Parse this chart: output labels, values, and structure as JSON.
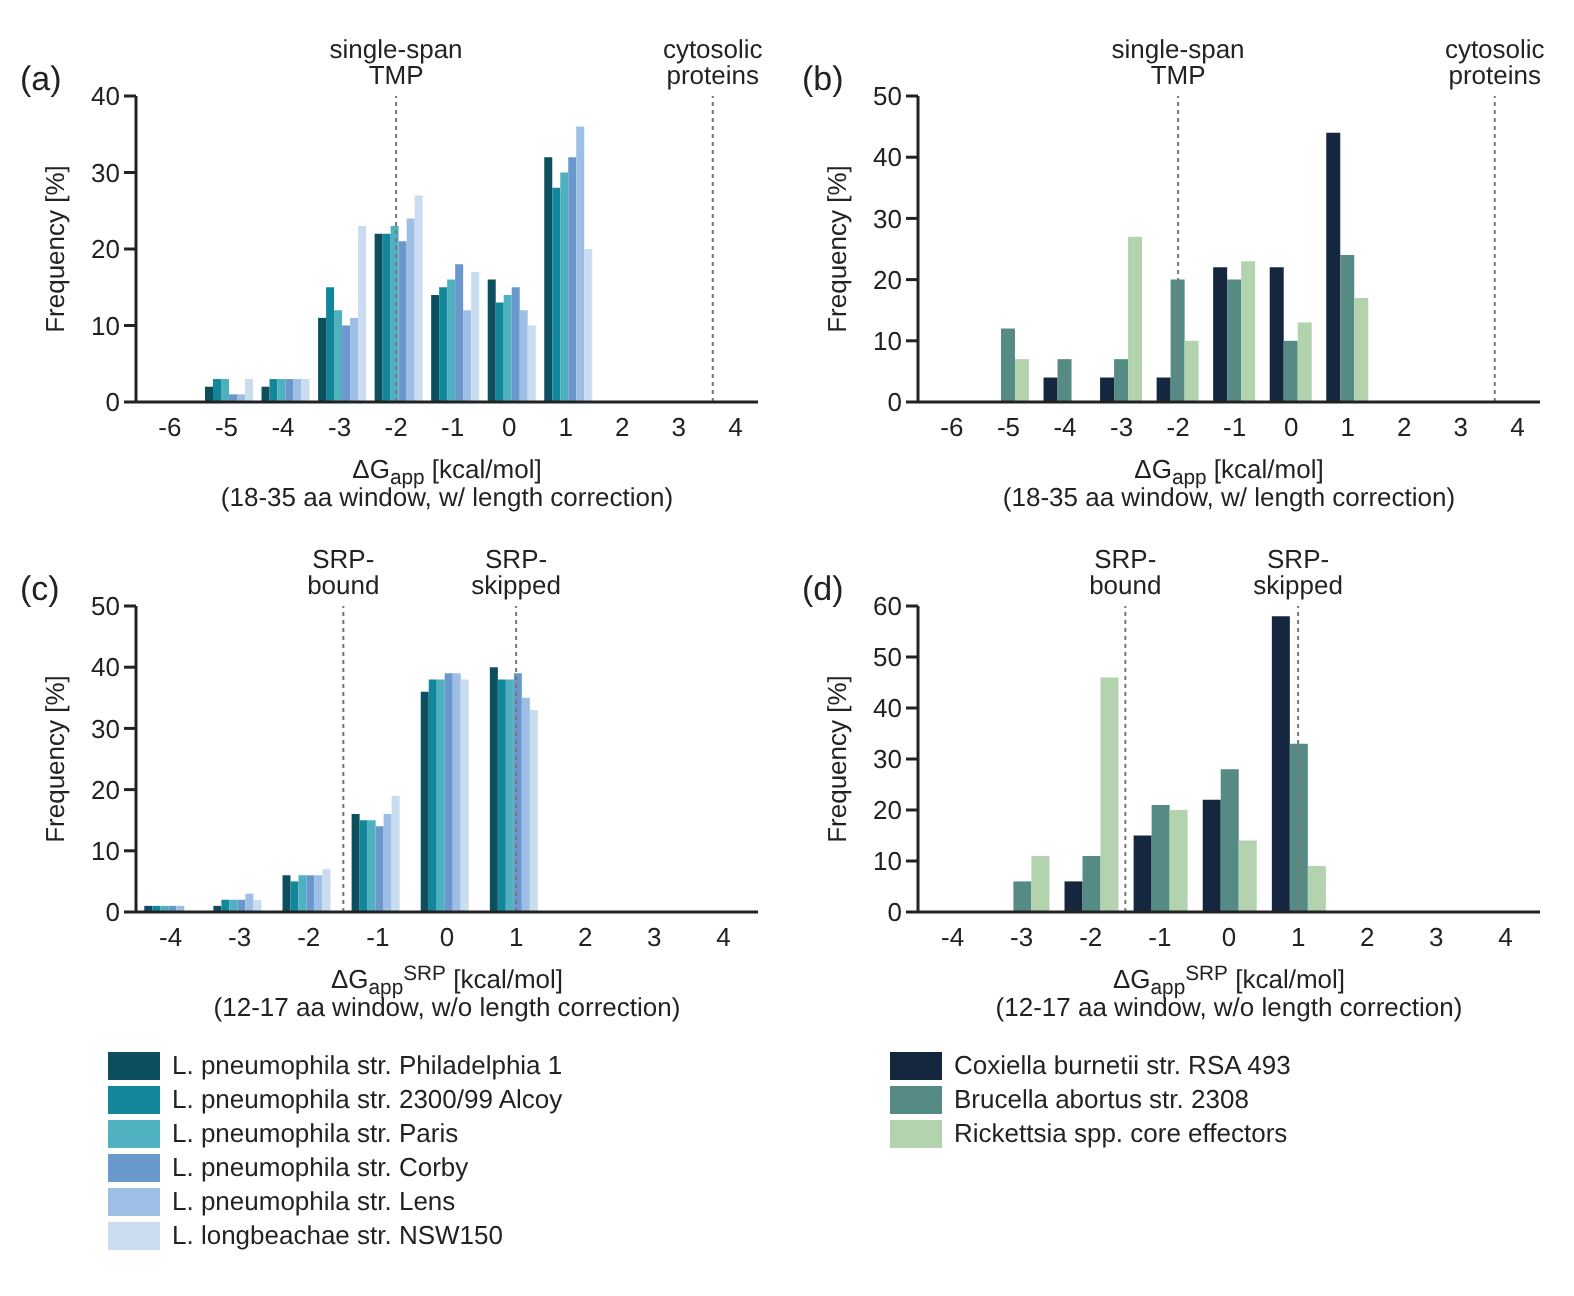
{
  "chart_data": [
    {
      "type": "bar",
      "title": "(a)",
      "xlabel": "ΔG$_{app}$ [kcal/mol]\n(18-35 aa window, w/ length correction)",
      "ylabel": "Frequency [%]",
      "x": [
        -6,
        -5,
        -4,
        -3,
        -2,
        -1,
        0,
        1,
        2,
        3,
        4
      ],
      "xlim": [
        -6.6,
        4.4
      ],
      "xticks": [
        -6,
        -5,
        -4,
        -3,
        -2,
        -1,
        0,
        1,
        2,
        3,
        4
      ],
      "ylim": [
        0,
        40
      ],
      "yticks": [
        0,
        10,
        20,
        30,
        40
      ],
      "series": [
        {
          "color": "#0d4f5e",
          "values": [
            0,
            2,
            2,
            11,
            22,
            14,
            16,
            32,
            0,
            0,
            0
          ]
        },
        {
          "color": "#13879a",
          "values": [
            0,
            3,
            3,
            15,
            22,
            15,
            13,
            28,
            0,
            0,
            0
          ]
        },
        {
          "color": "#4fb0c0",
          "values": [
            0,
            3,
            3,
            12,
            23,
            16,
            14,
            30,
            0,
            0,
            0
          ]
        },
        {
          "color": "#6a98cc",
          "values": [
            0,
            1,
            3,
            10,
            21,
            18,
            15,
            32,
            0,
            0,
            0
          ]
        },
        {
          "color": "#9dbfe6",
          "values": [
            0,
            1,
            3,
            11,
            24,
            12,
            12,
            36,
            0,
            0,
            0
          ]
        },
        {
          "color": "#c9dcf0",
          "values": [
            0,
            3,
            3,
            23,
            27,
            17,
            10,
            20,
            0,
            0,
            0
          ]
        }
      ],
      "ref_lines": [
        {
          "axis": "x",
          "value": -2,
          "label": "single-span\nTMP",
          "color": "#777777",
          "line_style": "dotted"
        },
        {
          "axis": "x",
          "value": 3.6,
          "label": "cytosolic\nproteins",
          "color": "#777777",
          "line_style": "dotted"
        }
      ]
    },
    {
      "type": "bar",
      "title": "(b)",
      "xlabel": "ΔG$_{app}$ [kcal/mol]\n(18-35 aa window, w/ length correction)",
      "ylabel": "Frequency [%]",
      "x": [
        -6,
        -5,
        -4,
        -3,
        -2,
        -1,
        0,
        1,
        2,
        3,
        4
      ],
      "xlim": [
        -6.6,
        4.4
      ],
      "xticks": [
        -6,
        -5,
        -4,
        -3,
        -2,
        -1,
        0,
        1,
        2,
        3,
        4
      ],
      "ylim": [
        0,
        50
      ],
      "yticks": [
        0,
        10,
        20,
        30,
        40,
        50
      ],
      "series": [
        {
          "color": "#14273f",
          "values": [
            0,
            0,
            4,
            4,
            4,
            22,
            22,
            44,
            0,
            0,
            0
          ]
        },
        {
          "color": "#568a85",
          "values": [
            0,
            12,
            7,
            7,
            20,
            20,
            10,
            24,
            0,
            0,
            0
          ]
        },
        {
          "color": "#b3d3ae",
          "values": [
            0,
            7,
            0,
            27,
            10,
            23,
            13,
            17,
            0,
            0,
            0
          ]
        }
      ],
      "ref_lines": [
        {
          "axis": "x",
          "value": -2,
          "label": "single-span\nTMP",
          "color": "#777777",
          "line_style": "dotted"
        },
        {
          "axis": "x",
          "value": 3.6,
          "label": "cytosolic\nproteins",
          "color": "#777777",
          "line_style": "dotted"
        }
      ]
    },
    {
      "type": "bar",
      "title": "(c)",
      "xlabel": "ΔG$_{app}$$^{SRP}$ [kcal/mol]\n(12-17 aa window, w/o length correction)",
      "ylabel": "Frequency [%]",
      "x": [
        -4,
        -3,
        -2,
        -1,
        0,
        1,
        2,
        3,
        4
      ],
      "xlim": [
        -4.5,
        4.5
      ],
      "xticks": [
        -4,
        -3,
        -2,
        -1,
        0,
        1,
        2,
        3,
        4
      ],
      "ylim": [
        0,
        50
      ],
      "yticks": [
        0,
        10,
        20,
        30,
        40,
        50
      ],
      "legend": "bottom",
      "series": [
        {
          "name": "L. pneumophila str. Philadelphia 1",
          "color": "#0d4f5e",
          "values": [
            1,
            1,
            6,
            16,
            36,
            40,
            0,
            0,
            0
          ]
        },
        {
          "name": "L. pneumophila str. 2300/99 Alcoy",
          "color": "#13879a",
          "values": [
            1,
            2,
            5,
            15,
            38,
            38,
            0,
            0,
            0
          ]
        },
        {
          "name": "L. pneumophila str. Paris",
          "color": "#4fb0c0",
          "values": [
            1,
            2,
            6,
            15,
            38,
            38,
            0,
            0,
            0
          ]
        },
        {
          "name": "L. pneumophila str. Corby",
          "color": "#6a98cc",
          "values": [
            1,
            2,
            6,
            14,
            39,
            39,
            0,
            0,
            0
          ]
        },
        {
          "name": "L. pneumophila str. Lens",
          "color": "#9dbfe6",
          "values": [
            1,
            3,
            6,
            16,
            39,
            35,
            0,
            0,
            0
          ]
        },
        {
          "name": "L. longbeachae str. NSW150",
          "color": "#c9dcf0",
          "values": [
            0,
            2,
            7,
            19,
            38,
            33,
            0,
            0,
            0
          ]
        }
      ],
      "ref_lines": [
        {
          "axis": "x",
          "value": -1.5,
          "label": "SRP-\nbound",
          "color": "#777777",
          "line_style": "dotted"
        },
        {
          "axis": "x",
          "value": 1,
          "label": "SRP-\nskipped",
          "color": "#777777",
          "line_style": "dotted"
        }
      ]
    },
    {
      "type": "bar",
      "title": "(d)",
      "xlabel": "ΔG$_{app}$$^{SRP}$ [kcal/mol]\n(12-17 aa window, w/o length correction)",
      "ylabel": "Frequency [%]",
      "x": [
        -4,
        -3,
        -2,
        -1,
        0,
        1,
        2,
        3,
        4
      ],
      "xlim": [
        -4.5,
        4.5
      ],
      "xticks": [
        -4,
        -3,
        -2,
        -1,
        0,
        1,
        2,
        3,
        4
      ],
      "ylim": [
        0,
        60
      ],
      "yticks": [
        0,
        10,
        20,
        30,
        40,
        50,
        60
      ],
      "legend": "bottom",
      "series": [
        {
          "name": "Coxiella burnetii str. RSA 493",
          "color": "#14273f",
          "values": [
            0,
            0,
            6,
            15,
            22,
            58,
            0,
            0,
            0
          ]
        },
        {
          "name": "Brucella abortus str. 2308",
          "color": "#568a85",
          "values": [
            0,
            6,
            11,
            21,
            28,
            33,
            0,
            0,
            0
          ]
        },
        {
          "name": "Rickettsia spp. core effectors",
          "color": "#b3d3ae",
          "values": [
            0,
            11,
            46,
            20,
            14,
            9,
            0,
            0,
            0
          ]
        }
      ],
      "ref_lines": [
        {
          "axis": "x",
          "value": -1.5,
          "label": "SRP-\nbound",
          "color": "#777777",
          "line_style": "dotted"
        },
        {
          "axis": "x",
          "value": 1,
          "label": "SRP-\nskipped",
          "color": "#777777",
          "line_style": "dotted"
        }
      ]
    }
  ]
}
